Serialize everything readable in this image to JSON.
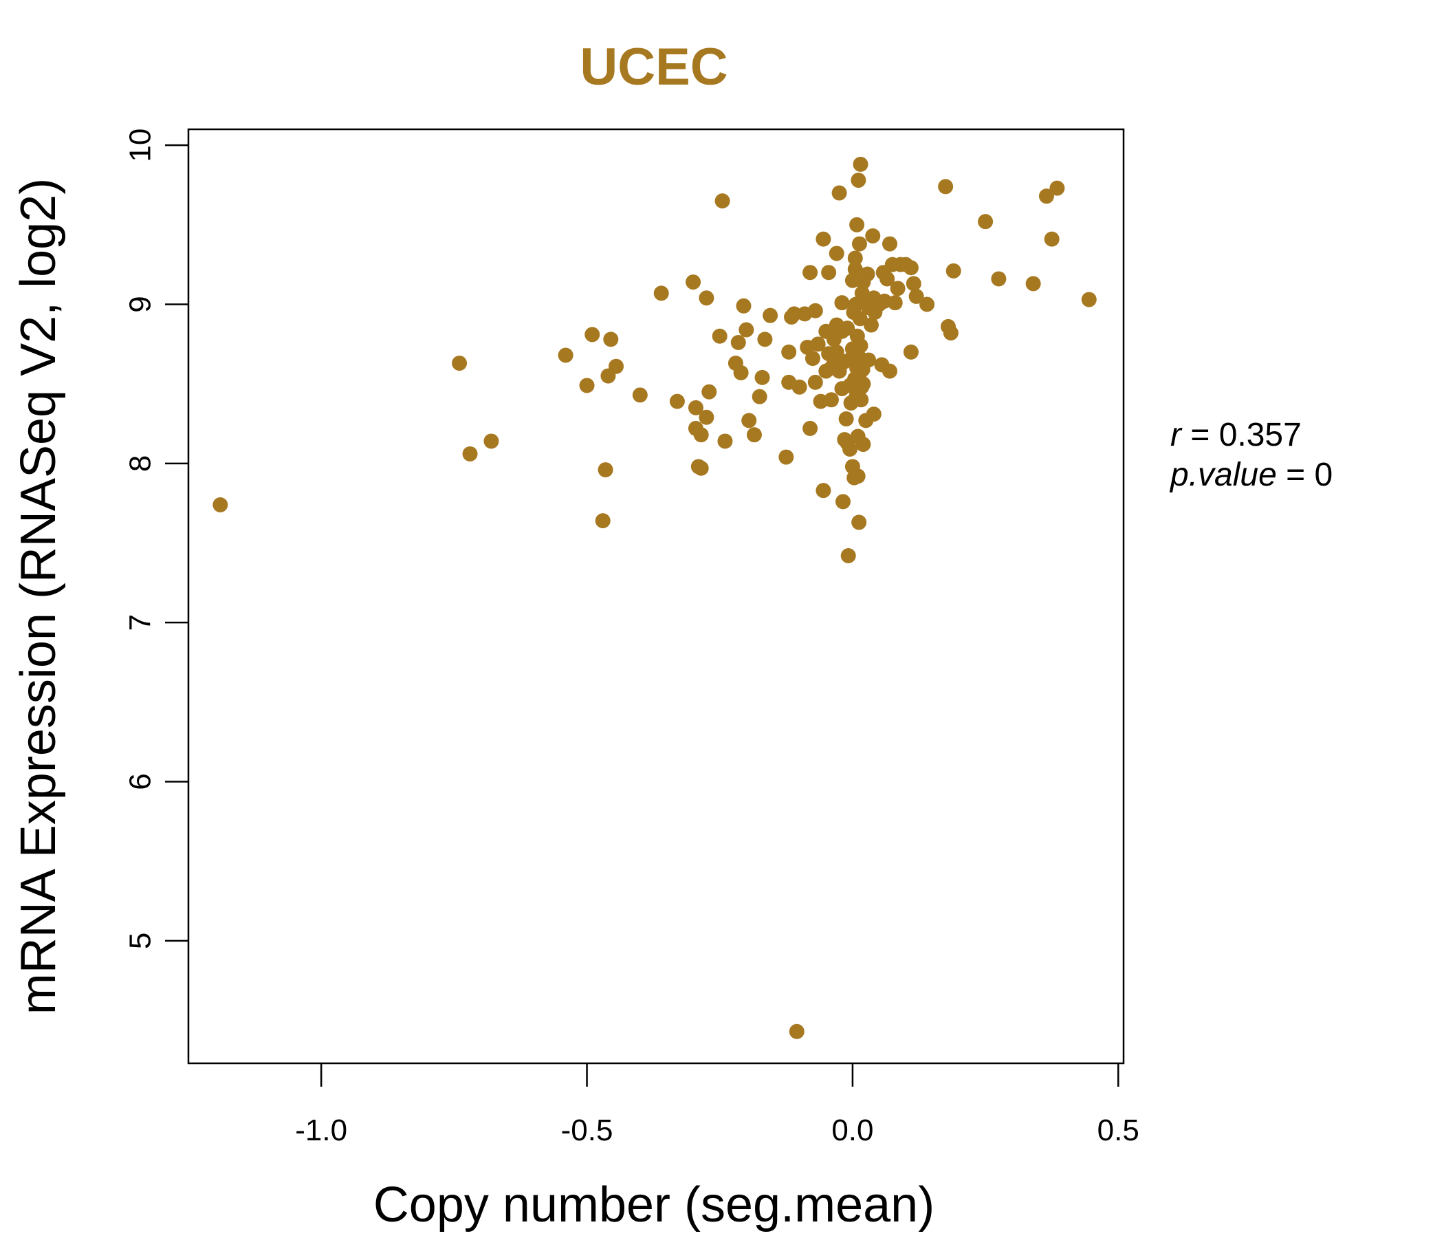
{
  "chart_data": {
    "type": "scatter",
    "title": "UCEC",
    "xlabel": "Copy number (seg.mean)",
    "ylabel": "mRNA Expression (RNASeq V2, log2)",
    "xlim": [
      -1.25,
      0.51
    ],
    "ylim": [
      4.23,
      10.1
    ],
    "x_ticks": [
      -1.0,
      -0.5,
      0.0,
      0.5
    ],
    "x_tick_labels": [
      "-1.0",
      "-0.5",
      "0.0",
      "0.5"
    ],
    "y_ticks": [
      5,
      6,
      7,
      8,
      9,
      10
    ],
    "y_tick_labels": [
      "5",
      "6",
      "7",
      "8",
      "9",
      "10"
    ],
    "grid": false,
    "point_color": "#A67820",
    "annotation": {
      "r_label": "r",
      "r_value": "0.357",
      "p_label": "p.value",
      "p_value": "0"
    },
    "points": [
      [
        -1.19,
        7.74
      ],
      [
        -0.74,
        8.63
      ],
      [
        -0.72,
        8.06
      ],
      [
        -0.68,
        8.14
      ],
      [
        -0.54,
        8.68
      ],
      [
        -0.5,
        8.49
      ],
      [
        -0.49,
        8.81
      ],
      [
        -0.47,
        7.64
      ],
      [
        -0.465,
        7.96
      ],
      [
        -0.46,
        8.55
      ],
      [
        -0.455,
        8.78
      ],
      [
        -0.445,
        8.61
      ],
      [
        -0.4,
        8.43
      ],
      [
        -0.36,
        9.07
      ],
      [
        -0.33,
        8.39
      ],
      [
        -0.3,
        9.14
      ],
      [
        -0.295,
        8.35
      ],
      [
        -0.295,
        8.22
      ],
      [
        -0.29,
        7.98
      ],
      [
        -0.285,
        8.18
      ],
      [
        -0.285,
        7.97
      ],
      [
        -0.275,
        8.29
      ],
      [
        -0.275,
        9.04
      ],
      [
        -0.27,
        8.45
      ],
      [
        -0.25,
        8.8
      ],
      [
        -0.245,
        9.65
      ],
      [
        -0.24,
        8.14
      ],
      [
        -0.22,
        8.63
      ],
      [
        -0.215,
        8.76
      ],
      [
        -0.21,
        8.57
      ],
      [
        -0.205,
        8.99
      ],
      [
        -0.2,
        8.84
      ],
      [
        -0.195,
        8.27
      ],
      [
        -0.185,
        8.18
      ],
      [
        -0.175,
        8.42
      ],
      [
        -0.17,
        8.54
      ],
      [
        -0.165,
        8.78
      ],
      [
        -0.155,
        8.93
      ],
      [
        -0.125,
        8.04
      ],
      [
        -0.12,
        8.7
      ],
      [
        -0.12,
        8.51
      ],
      [
        -0.115,
        8.92
      ],
      [
        -0.11,
        8.94
      ],
      [
        -0.1,
        8.48
      ],
      [
        -0.105,
        4.43
      ],
      [
        -0.09,
        8.94
      ],
      [
        -0.085,
        8.73
      ],
      [
        -0.08,
        8.22
      ],
      [
        -0.08,
        9.2
      ],
      [
        -0.075,
        8.66
      ],
      [
        -0.07,
        8.96
      ],
      [
        -0.07,
        8.51
      ],
      [
        -0.065,
        8.75
      ],
      [
        -0.06,
        8.39
      ],
      [
        -0.055,
        9.41
      ],
      [
        -0.055,
        7.83
      ],
      [
        -0.05,
        8.58
      ],
      [
        -0.05,
        8.83
      ],
      [
        -0.045,
        8.69
      ],
      [
        -0.045,
        9.2
      ],
      [
        -0.04,
        8.6
      ],
      [
        -0.04,
        8.4
      ],
      [
        -0.035,
        8.78
      ],
      [
        -0.035,
        8.63
      ],
      [
        -0.03,
        9.32
      ],
      [
        -0.03,
        8.7
      ],
      [
        -0.03,
        8.87
      ],
      [
        -0.025,
        9.7
      ],
      [
        -0.025,
        8.58
      ],
      [
        -0.02,
        8.83
      ],
      [
        -0.02,
        8.47
      ],
      [
        -0.02,
        9.01
      ],
      [
        -0.018,
        7.76
      ],
      [
        -0.015,
        8.64
      ],
      [
        -0.015,
        8.15
      ],
      [
        -0.012,
        8.28
      ],
      [
        -0.01,
        8.85
      ],
      [
        -0.01,
        8.13
      ],
      [
        -0.008,
        7.42
      ],
      [
        -0.005,
        8.09
      ],
      [
        -0.005,
        8.49
      ],
      [
        -0.003,
        8.38
      ],
      [
        -0.002,
        8.66
      ],
      [
        0.0,
        7.98
      ],
      [
        0.0,
        8.72
      ],
      [
        0.0,
        9.15
      ],
      [
        0.002,
        8.95
      ],
      [
        0.003,
        7.91
      ],
      [
        0.004,
        8.53
      ],
      [
        0.005,
        9.22
      ],
      [
        0.005,
        9.29
      ],
      [
        0.006,
        9.0
      ],
      [
        0.007,
        8.42
      ],
      [
        0.008,
        9.5
      ],
      [
        0.008,
        8.6
      ],
      [
        0.009,
        8.8
      ],
      [
        0.01,
        8.68
      ],
      [
        0.01,
        7.92
      ],
      [
        0.01,
        8.17
      ],
      [
        0.011,
        9.78
      ],
      [
        0.012,
        8.55
      ],
      [
        0.012,
        7.63
      ],
      [
        0.013,
        9.38
      ],
      [
        0.014,
        8.91
      ],
      [
        0.015,
        8.74
      ],
      [
        0.015,
        9.88
      ],
      [
        0.016,
        8.4
      ],
      [
        0.017,
        8.48
      ],
      [
        0.018,
        9.07
      ],
      [
        0.019,
        8.59
      ],
      [
        0.02,
        8.12
      ],
      [
        0.02,
        8.5
      ],
      [
        0.02,
        9.14
      ],
      [
        0.022,
        8.64
      ],
      [
        0.025,
        9.0
      ],
      [
        0.025,
        8.27
      ],
      [
        0.028,
        9.19
      ],
      [
        0.03,
        8.65
      ],
      [
        0.03,
        8.98
      ],
      [
        0.035,
        8.87
      ],
      [
        0.038,
        9.43
      ],
      [
        0.04,
        9.04
      ],
      [
        0.04,
        8.31
      ],
      [
        0.042,
        8.95
      ],
      [
        0.05,
        9.0
      ],
      [
        0.055,
        8.62
      ],
      [
        0.058,
        9.2
      ],
      [
        0.06,
        9.02
      ],
      [
        0.065,
        9.16
      ],
      [
        0.07,
        8.58
      ],
      [
        0.07,
        9.38
      ],
      [
        0.075,
        9.25
      ],
      [
        0.08,
        9.01
      ],
      [
        0.085,
        9.1
      ],
      [
        0.09,
        9.25
      ],
      [
        0.1,
        9.25
      ],
      [
        0.11,
        8.7
      ],
      [
        0.11,
        9.23
      ],
      [
        0.115,
        9.13
      ],
      [
        0.12,
        9.05
      ],
      [
        0.14,
        9.0
      ],
      [
        0.175,
        9.74
      ],
      [
        0.18,
        8.86
      ],
      [
        0.185,
        8.82
      ],
      [
        0.19,
        9.21
      ],
      [
        0.25,
        9.52
      ],
      [
        0.275,
        9.16
      ],
      [
        0.34,
        9.13
      ],
      [
        0.365,
        9.68
      ],
      [
        0.375,
        9.41
      ],
      [
        0.385,
        9.73
      ],
      [
        0.445,
        9.03
      ]
    ]
  }
}
